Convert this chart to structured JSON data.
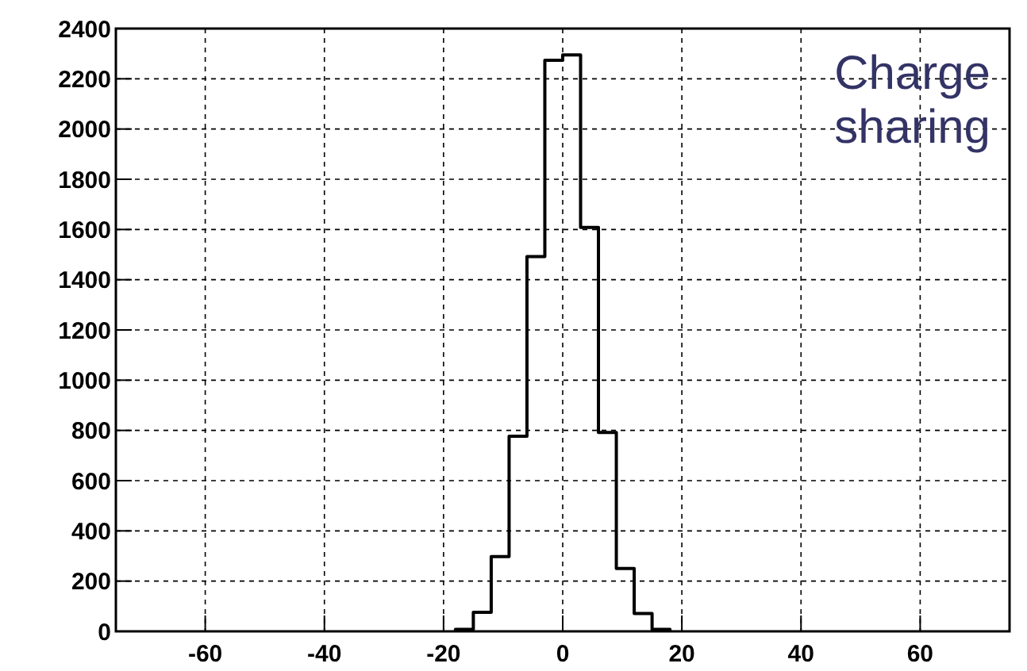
{
  "chart_data": {
    "type": "histogram",
    "bins": [
      -18,
      -15,
      -12,
      -9,
      -6,
      -3,
      0,
      3,
      6,
      9,
      12,
      15,
      18
    ],
    "values": [
      8,
      76,
      298,
      777,
      1492,
      2274,
      2295,
      1608,
      792,
      250,
      71,
      8
    ],
    "color": "#000000",
    "xlim": [
      -75,
      75
    ],
    "xticks": [
      -60,
      -40,
      -20,
      0,
      20,
      40,
      60
    ],
    "ylim": [
      0,
      2400
    ],
    "yticks": [
      0,
      200,
      400,
      600,
      800,
      1000,
      1200,
      1400,
      1600,
      1800,
      2000,
      2200,
      2400
    ],
    "grid": true,
    "annotations": [
      "Charge\nsharing"
    ]
  }
}
